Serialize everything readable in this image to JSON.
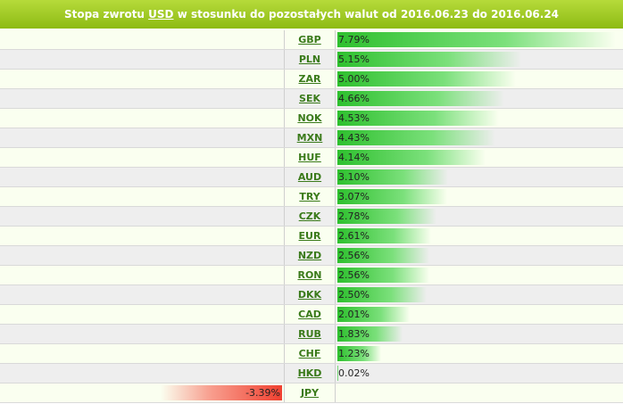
{
  "header": {
    "prefix": "Stopa zwrotu",
    "base": "USD",
    "middle": "w stosunku do pozostałych walut od",
    "date_from": "2016.06.23",
    "to_word": "do",
    "date_to": "2016.06.24"
  },
  "rows": [
    {
      "code": "GBP",
      "value_text": "7.79%",
      "value": 7.79
    },
    {
      "code": "PLN",
      "value_text": "5.15%",
      "value": 5.15
    },
    {
      "code": "ZAR",
      "value_text": "5.00%",
      "value": 5.0
    },
    {
      "code": "SEK",
      "value_text": "4.66%",
      "value": 4.66
    },
    {
      "code": "NOK",
      "value_text": "4.53%",
      "value": 4.53
    },
    {
      "code": "MXN",
      "value_text": "4.43%",
      "value": 4.43
    },
    {
      "code": "HUF",
      "value_text": "4.14%",
      "value": 4.14
    },
    {
      "code": "AUD",
      "value_text": "3.10%",
      "value": 3.1
    },
    {
      "code": "TRY",
      "value_text": "3.07%",
      "value": 3.07
    },
    {
      "code": "CZK",
      "value_text": "2.78%",
      "value": 2.78
    },
    {
      "code": "EUR",
      "value_text": "2.61%",
      "value": 2.61
    },
    {
      "code": "NZD",
      "value_text": "2.56%",
      "value": 2.56
    },
    {
      "code": "RON",
      "value_text": "2.56%",
      "value": 2.56
    },
    {
      "code": "DKK",
      "value_text": "2.50%",
      "value": 2.5
    },
    {
      "code": "CAD",
      "value_text": "2.01%",
      "value": 2.01
    },
    {
      "code": "RUB",
      "value_text": "1.83%",
      "value": 1.83
    },
    {
      "code": "CHF",
      "value_text": "1.23%",
      "value": 1.23
    },
    {
      "code": "HKD",
      "value_text": "0.02%",
      "value": 0.02
    },
    {
      "code": "JPY",
      "value_text": "-3.39%",
      "value": -3.39
    }
  ],
  "colors": {
    "positive": "#2ec02e",
    "negative": "#f04030",
    "header": "#9ccb20",
    "link": "#3a7a1a"
  }
}
